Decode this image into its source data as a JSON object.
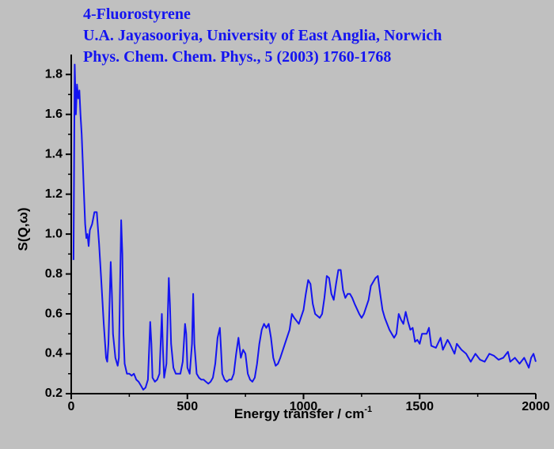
{
  "chart_data": {
    "type": "line",
    "title": "4-Fluorostyrene",
    "subtitle": [
      "U.A. Jayasooriya, University of East Anglia, Norwich",
      "Phys. Chem. Chem. Phys., 5 (2003) 1760-1768"
    ],
    "xlabel": {
      "text": "Energy transfer / cm",
      "sup": "-1"
    },
    "ylabel": "S(Q,ω)",
    "color": "#1414f0",
    "x": [
      10,
      15,
      20,
      25,
      30,
      35,
      40,
      45,
      50,
      55,
      60,
      65,
      70,
      75,
      80,
      90,
      100,
      110,
      120,
      130,
      140,
      150,
      155,
      160,
      170,
      175,
      180,
      190,
      200,
      205,
      215,
      220,
      225,
      230,
      240,
      250,
      260,
      270,
      280,
      290,
      300,
      310,
      320,
      330,
      340,
      345,
      350,
      360,
      370,
      380,
      390,
      395,
      400,
      410,
      420,
      425,
      430,
      440,
      450,
      460,
      470,
      480,
      490,
      495,
      500,
      510,
      520,
      525,
      530,
      540,
      550,
      560,
      570,
      580,
      590,
      600,
      610,
      620,
      630,
      640,
      645,
      650,
      660,
      670,
      680,
      690,
      700,
      710,
      720,
      730,
      740,
      750,
      760,
      770,
      780,
      790,
      800,
      810,
      820,
      830,
      840,
      850,
      860,
      870,
      880,
      890,
      900,
      920,
      940,
      950,
      960,
      980,
      1000,
      1010,
      1020,
      1030,
      1040,
      1050,
      1070,
      1080,
      1090,
      1100,
      1110,
      1120,
      1130,
      1140,
      1150,
      1160,
      1170,
      1180,
      1190,
      1200,
      1210,
      1220,
      1240,
      1250,
      1260,
      1280,
      1290,
      1310,
      1320,
      1330,
      1340,
      1350,
      1370,
      1380,
      1390,
      1400,
      1410,
      1420,
      1430,
      1440,
      1450,
      1460,
      1470,
      1480,
      1490,
      1500,
      1510,
      1530,
      1540,
      1550,
      1570,
      1590,
      1600,
      1620,
      1630,
      1650,
      1660,
      1680,
      1700,
      1720,
      1740,
      1760,
      1780,
      1800,
      1820,
      1840,
      1860,
      1880,
      1890,
      1910,
      1930,
      1950,
      1970,
      1980,
      1990,
      2000
    ],
    "values": [
      0.87,
      1.85,
      1.6,
      1.75,
      1.68,
      1.72,
      1.6,
      1.5,
      1.35,
      1.2,
      1.05,
      0.98,
      1.0,
      0.94,
      1.02,
      1.05,
      1.11,
      1.11,
      0.95,
      0.75,
      0.55,
      0.38,
      0.36,
      0.45,
      0.86,
      0.7,
      0.5,
      0.38,
      0.34,
      0.38,
      1.07,
      0.9,
      0.5,
      0.35,
      0.3,
      0.3,
      0.29,
      0.3,
      0.27,
      0.26,
      0.24,
      0.22,
      0.23,
      0.27,
      0.56,
      0.45,
      0.28,
      0.26,
      0.27,
      0.3,
      0.6,
      0.42,
      0.28,
      0.35,
      0.78,
      0.65,
      0.45,
      0.33,
      0.3,
      0.3,
      0.3,
      0.36,
      0.55,
      0.5,
      0.33,
      0.3,
      0.45,
      0.7,
      0.45,
      0.3,
      0.28,
      0.27,
      0.27,
      0.26,
      0.25,
      0.26,
      0.28,
      0.35,
      0.48,
      0.53,
      0.42,
      0.3,
      0.27,
      0.26,
      0.27,
      0.27,
      0.3,
      0.4,
      0.48,
      0.38,
      0.42,
      0.4,
      0.3,
      0.27,
      0.26,
      0.28,
      0.35,
      0.45,
      0.52,
      0.55,
      0.53,
      0.55,
      0.48,
      0.38,
      0.34,
      0.35,
      0.38,
      0.45,
      0.52,
      0.6,
      0.58,
      0.55,
      0.62,
      0.7,
      0.77,
      0.75,
      0.65,
      0.6,
      0.58,
      0.6,
      0.68,
      0.79,
      0.78,
      0.7,
      0.67,
      0.75,
      0.82,
      0.82,
      0.72,
      0.68,
      0.7,
      0.7,
      0.68,
      0.65,
      0.6,
      0.58,
      0.6,
      0.67,
      0.74,
      0.78,
      0.79,
      0.7,
      0.62,
      0.58,
      0.52,
      0.5,
      0.48,
      0.5,
      0.6,
      0.57,
      0.55,
      0.61,
      0.56,
      0.52,
      0.53,
      0.46,
      0.47,
      0.45,
      0.5,
      0.5,
      0.53,
      0.44,
      0.43,
      0.48,
      0.42,
      0.47,
      0.45,
      0.4,
      0.45,
      0.42,
      0.4,
      0.36,
      0.4,
      0.37,
      0.36,
      0.4,
      0.39,
      0.37,
      0.38,
      0.41,
      0.36,
      0.38,
      0.35,
      0.38,
      0.33,
      0.38,
      0.4,
      0.36
    ],
    "xlim": [
      0,
      2000
    ],
    "xticks": [
      0,
      500,
      1000,
      1500,
      2000
    ],
    "ylim": [
      0.2,
      1.9
    ],
    "yticks": [
      0.2,
      0.4,
      0.6,
      0.8,
      {
        "value": 1,
        "label": "1.0"
      },
      1.2,
      1.4,
      1.6,
      1.8
    ]
  }
}
